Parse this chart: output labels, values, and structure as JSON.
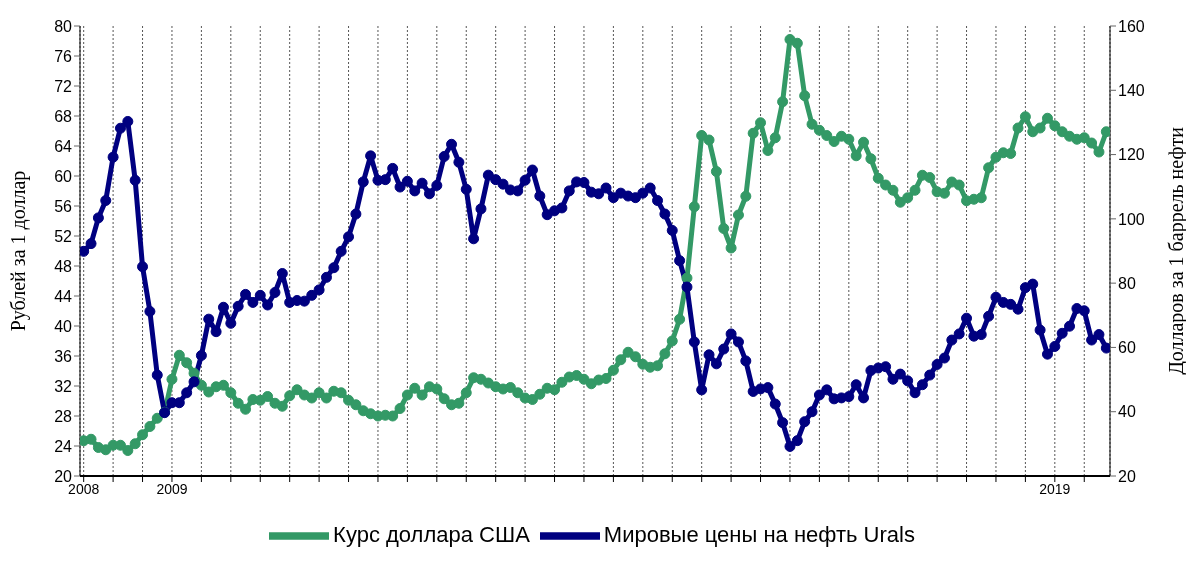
{
  "chart_data": {
    "type": "line",
    "categories": [
      "2008",
      null,
      null,
      null,
      null,
      null,
      null,
      null,
      null,
      null,
      null,
      null,
      "2009",
      null,
      null,
      null,
      null,
      null,
      null,
      null,
      null,
      null,
      null,
      null,
      null,
      null,
      null,
      null,
      null,
      null,
      null,
      null,
      null,
      null,
      null,
      null,
      null,
      null,
      null,
      null,
      null,
      null,
      null,
      null,
      null,
      null,
      null,
      null,
      null,
      null,
      null,
      null,
      null,
      null,
      null,
      null,
      null,
      null,
      null,
      null,
      null,
      null,
      null,
      null,
      null,
      null,
      null,
      null,
      null,
      null,
      null,
      null,
      null,
      null,
      null,
      null,
      null,
      null,
      null,
      null,
      null,
      null,
      null,
      null,
      null,
      null,
      null,
      null,
      null,
      null,
      null,
      null,
      null,
      null,
      null,
      null,
      null,
      null,
      null,
      null,
      null,
      null,
      null,
      null,
      null,
      null,
      null,
      null,
      null,
      null,
      null,
      null,
      null,
      null,
      null,
      null,
      null,
      null,
      null,
      null,
      null,
      null,
      null,
      null,
      null,
      null,
      null,
      null,
      null,
      null,
      null,
      null,
      "2019",
      null,
      null,
      null,
      null,
      null,
      null,
      null
    ],
    "ylabel": "Рублей за 1 доллар",
    "y2label": "Долларов за 1 баррель нефти",
    "ylim": [
      20,
      80
    ],
    "yticks": [
      20,
      24,
      28,
      32,
      36,
      40,
      44,
      48,
      52,
      56,
      60,
      64,
      68,
      72,
      76,
      80
    ],
    "y2lim": [
      20,
      160
    ],
    "y2ticks": [
      20,
      40,
      60,
      80,
      100,
      120,
      140,
      160
    ],
    "grid": "x",
    "legend": "bottom",
    "marker": "circle",
    "series": [
      {
        "name": "Курс доллара США",
        "color": "#339966",
        "axis": "y",
        "values": [
          24.7,
          24.9,
          23.8,
          23.5,
          24.1,
          24.1,
          23.4,
          24.3,
          25.5,
          26.6,
          27.7,
          28.5,
          32.9,
          36.1,
          35.1,
          33.7,
          32.1,
          31.2,
          31.9,
          32.1,
          31.1,
          29.7,
          28.9,
          30.2,
          30.1,
          30.6,
          29.7,
          29.3,
          30.7,
          31.5,
          30.8,
          30.4,
          31.1,
          30.4,
          31.3,
          31.1,
          30.1,
          29.5,
          28.7,
          28.3,
          28.0,
          28.1,
          28.0,
          29.0,
          30.8,
          31.7,
          30.8,
          31.9,
          31.6,
          30.3,
          29.5,
          29.7,
          31.1,
          33.1,
          32.9,
          32.4,
          31.9,
          31.6,
          31.8,
          31.1,
          30.4,
          30.2,
          30.9,
          31.7,
          31.5,
          32.5,
          33.2,
          33.4,
          32.9,
          32.3,
          32.8,
          33.0,
          34.1,
          35.5,
          36.5,
          35.9,
          34.9,
          34.5,
          34.7,
          36.3,
          38.0,
          40.9,
          46.4,
          55.9,
          65.4,
          64.8,
          60.6,
          53.0,
          50.4,
          54.8,
          57.3,
          65.7,
          67.1,
          63.4,
          65.1,
          69.9,
          78.2,
          77.7,
          70.7,
          66.9,
          66.1,
          65.4,
          64.6,
          65.3,
          64.9,
          62.7,
          64.5,
          62.3,
          59.7,
          58.8,
          58.1,
          56.5,
          57.1,
          58.1,
          60.1,
          59.8,
          57.9,
          57.7,
          59.2,
          58.8,
          56.7,
          56.9,
          57.1,
          61.1,
          62.5,
          63.1,
          63.0,
          66.4,
          67.9,
          65.9,
          66.4,
          67.7,
          66.7,
          65.9,
          65.3,
          64.9,
          65.1,
          64.4,
          63.2,
          65.9
        ]
      },
      {
        "name": "Мировые цены на нефть Urals",
        "color": "#000080",
        "axis": "y2",
        "values": [
          89.9,
          92.3,
          100.3,
          105.7,
          119.2,
          128.2,
          130.3,
          112.0,
          85.1,
          71.2,
          51.4,
          39.7,
          42.8,
          42.8,
          45.9,
          49.3,
          57.5,
          68.8,
          64.9,
          72.5,
          67.5,
          72.8,
          76.5,
          74.0,
          76.2,
          73.2,
          77.1,
          83.0,
          74.0,
          74.6,
          74.4,
          76.2,
          77.9,
          81.8,
          84.8,
          89.9,
          94.4,
          101.5,
          111.5,
          119.6,
          112.0,
          112.2,
          115.7,
          109.9,
          111.7,
          108.7,
          111.1,
          107.8,
          110.4,
          119.4,
          123.2,
          117.6,
          109.2,
          93.8,
          103.1,
          113.6,
          112.2,
          110.8,
          109.0,
          108.7,
          112.0,
          115.2,
          107.1,
          101.3,
          102.5,
          103.4,
          108.7,
          111.5,
          111.3,
          108.3,
          107.8,
          109.6,
          106.6,
          108.0,
          107.1,
          106.6,
          108.0,
          109.6,
          105.7,
          101.5,
          96.4,
          87.0,
          78.8,
          61.7,
          46.8,
          57.7,
          54.9,
          59.5,
          64.2,
          61.7,
          55.8,
          46.3,
          47.1,
          47.5,
          42.4,
          36.6,
          29.2,
          31.0,
          36.9,
          40.0,
          45.2,
          46.8,
          44.0,
          44.3,
          44.7,
          48.4,
          44.3,
          52.8,
          53.6,
          54.0,
          50.1,
          51.7,
          49.6,
          45.9,
          48.4,
          51.4,
          54.7,
          56.7,
          62.3,
          64.2,
          69.1,
          63.5,
          64.0,
          69.7,
          75.6,
          74.0,
          73.4,
          71.9,
          78.6,
          79.7,
          65.4,
          57.9,
          60.3,
          64.4,
          66.6,
          72.1,
          71.4,
          62.3,
          64.0,
          59.8
        ]
      }
    ]
  }
}
